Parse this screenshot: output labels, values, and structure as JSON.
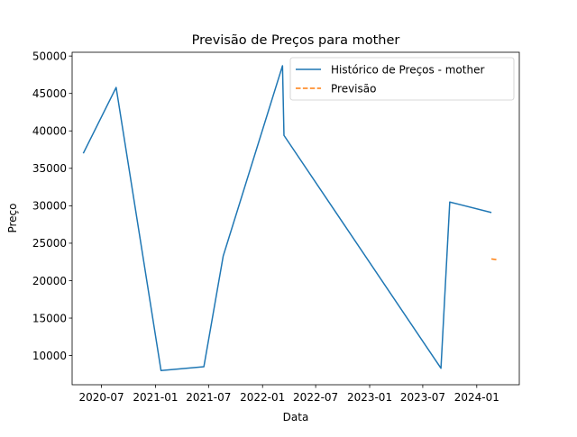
{
  "chart_data": {
    "type": "line",
    "title": "Previsão de Preços para mother",
    "xlabel": "Data",
    "ylabel": "Preço",
    "x_ticks": [
      "2020-07",
      "2021-01",
      "2021-07",
      "2022-01",
      "2022-07",
      "2023-01",
      "2023-07",
      "2024-01"
    ],
    "y_ticks": [
      10000,
      15000,
      20000,
      25000,
      30000,
      35000,
      40000,
      45000,
      50000
    ],
    "xlim": [
      "2020-03-23",
      "2024-05-25"
    ],
    "ylim": [
      6100,
      50500
    ],
    "series": [
      {
        "name": "Histórico de Preços - mother",
        "style": "solid",
        "color": "#1f77b4",
        "points": [
          {
            "x": "2020-04-30",
            "y": 37000
          },
          {
            "x": "2020-08-20",
            "y": 45800
          },
          {
            "x": "2021-01-20",
            "y": 8000
          },
          {
            "x": "2021-06-15",
            "y": 8500
          },
          {
            "x": "2021-08-20",
            "y": 23300
          },
          {
            "x": "2022-03-10",
            "y": 48700
          },
          {
            "x": "2022-03-15",
            "y": 39400
          },
          {
            "x": "2023-09-01",
            "y": 8300
          },
          {
            "x": "2023-10-01",
            "y": 30500
          },
          {
            "x": "2024-02-20",
            "y": 29100
          }
        ]
      },
      {
        "name": "Previsão",
        "style": "dashed",
        "color": "#ff7f0e",
        "points": [
          {
            "x": "2024-02-20",
            "y": 22900
          },
          {
            "x": "2024-03-10",
            "y": 22800
          }
        ]
      }
    ],
    "legend": "top-right",
    "grid": false
  }
}
